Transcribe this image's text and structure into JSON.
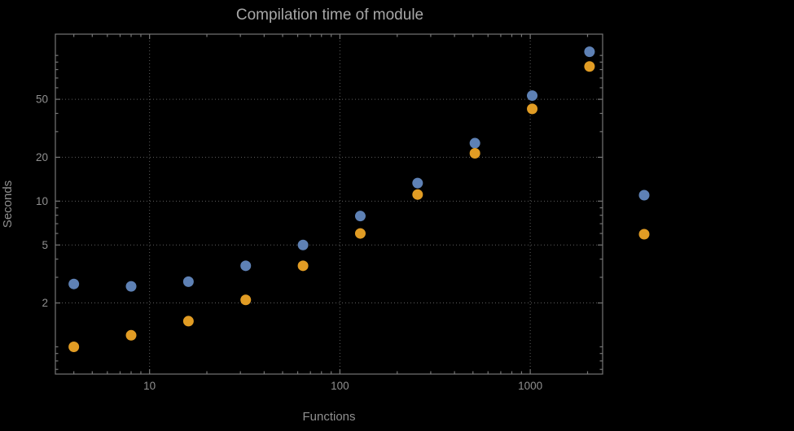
{
  "chart_data": {
    "type": "scatter",
    "title": "Compilation time of module",
    "xlabel": "Functions",
    "ylabel": "Seconds",
    "xscale": "log",
    "yscale": "log",
    "xlim": [
      3.2,
      2400
    ],
    "ylim": [
      0.65,
      140
    ],
    "x": [
      4,
      8,
      16,
      32,
      64,
      128,
      256,
      512,
      1024,
      2048
    ],
    "series": [
      {
        "name": "series-1",
        "color": "#5e81b5",
        "values": [
          2.7,
          2.6,
          2.8,
          3.6,
          5.0,
          7.9,
          13.3,
          25,
          53,
          106
        ]
      },
      {
        "name": "series-2",
        "color": "#e19c24",
        "values": [
          1.0,
          1.2,
          1.5,
          2.1,
          3.6,
          6.0,
          11.1,
          21.3,
          43,
          84
        ]
      }
    ],
    "x_ticks": [
      {
        "v": 10,
        "label": "10"
      },
      {
        "v": 100,
        "label": "100"
      },
      {
        "v": 1000,
        "label": "1000"
      }
    ],
    "y_ticks": [
      {
        "v": 2,
        "label": "2"
      },
      {
        "v": 5,
        "label": "5"
      },
      {
        "v": 10,
        "label": "10"
      },
      {
        "v": 20,
        "label": "20"
      },
      {
        "v": 50,
        "label": "50"
      }
    ],
    "grid": "dotted",
    "legend_position": "right",
    "colors": {
      "bg": "#000000",
      "frame": "#767676",
      "grid": "#5e5e5e",
      "tick": "#8f8f8f",
      "title": "#a8a8a8",
      "axis": "#8f8f8f"
    }
  }
}
